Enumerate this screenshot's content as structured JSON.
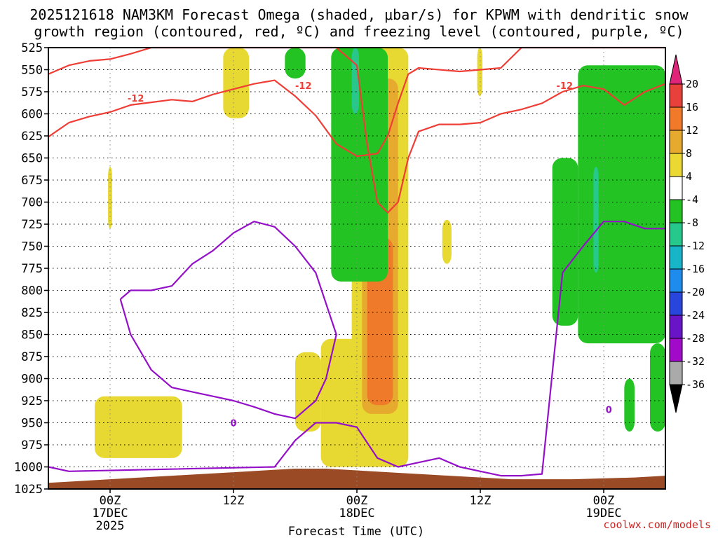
{
  "chart_data": {
    "type": "heatmap",
    "title_line1": "2025121618 NAM3KM Forecast Omega (shaded, μbar/s) for KPWM with dendritic snow",
    "title_line2": "growth region (contoured, red, ºC) and freezing level (contoured, purple, ºC)",
    "xlabel": "Forecast Time (UTC)",
    "y_ticks": [
      "525",
      "550",
      "575",
      "600",
      "625",
      "650",
      "675",
      "700",
      "725",
      "750",
      "775",
      "800",
      "825",
      "850",
      "875",
      "900",
      "925",
      "950",
      "975",
      "1000",
      "1025"
    ],
    "x_ticks": [
      {
        "hour": 6,
        "label": "00Z",
        "sub1": "17DEC",
        "sub2": "2025"
      },
      {
        "hour": 18,
        "label": "12Z",
        "sub1": "",
        "sub2": ""
      },
      {
        "hour": 30,
        "label": "00Z",
        "sub1": "18DEC",
        "sub2": ""
      },
      {
        "hour": 42,
        "label": "12Z",
        "sub1": "",
        "sub2": ""
      },
      {
        "hour": 54,
        "label": "00Z",
        "sub1": "19DEC",
        "sub2": ""
      }
    ],
    "x_range_hours": [
      0,
      60
    ],
    "y_range_hpa": [
      525,
      1025
    ],
    "colorbar": {
      "labels": [
        "20",
        "16",
        "12",
        "8",
        "4",
        "-4",
        "-8",
        "-12",
        "-16",
        "-20",
        "-24",
        "-28",
        "-32",
        "-36"
      ],
      "colors": [
        "#e0247a",
        "#e8413c",
        "#f07a2a",
        "#e6aa2e",
        "#ecd832",
        "#ffffff",
        "#22c322",
        "#27c88c",
        "#18b4c8",
        "#1e8cec",
        "#2846dc",
        "#6a14c8",
        "#a00ac8",
        "#aaaaaa",
        "#000000"
      ]
    },
    "contour_labels": {
      "red": "-12",
      "purple": "0"
    },
    "shaded_omega": [
      {
        "level": 4,
        "hours": [
          17.0,
          19.5
        ],
        "hpa": [
          525,
          605
        ]
      },
      {
        "level": 4,
        "hours": [
          4.5,
          13.0
        ],
        "hpa": [
          920,
          990
        ]
      },
      {
        "level": 4,
        "hours": [
          5.8,
          6.2
        ],
        "hpa": [
          660,
          730
        ]
      },
      {
        "level": 4,
        "hours": [
          24.0,
          26.5
        ],
        "hpa": [
          870,
          960
        ]
      },
      {
        "level": 4,
        "hours": [
          26.5,
          33.0
        ],
        "hpa": [
          855,
          1000
        ]
      },
      {
        "level": 4,
        "hours": [
          29.5,
          35.0
        ],
        "hpa": [
          525,
          1000
        ]
      },
      {
        "level": 8,
        "hours": [
          30.5,
          34.0
        ],
        "hpa": [
          560,
          940
        ]
      },
      {
        "level": 12,
        "hours": [
          31.0,
          33.5
        ],
        "hpa": [
          740,
          930
        ]
      },
      {
        "level": 4,
        "hours": [
          38.3,
          39.2
        ],
        "hpa": [
          720,
          770
        ]
      },
      {
        "level": 4,
        "hours": [
          41.7,
          42.2
        ],
        "hpa": [
          525,
          580
        ]
      },
      {
        "level": -4,
        "hours": [
          27.5,
          33.0
        ],
        "hpa": [
          525,
          790
        ]
      },
      {
        "level": -4,
        "hours": [
          23.0,
          25.0
        ],
        "hpa": [
          525,
          560
        ]
      },
      {
        "level": -8,
        "hours": [
          29.5,
          30.2
        ],
        "hpa": [
          525,
          600
        ]
      },
      {
        "level": -4,
        "hours": [
          49.0,
          51.5
        ],
        "hpa": [
          650,
          840
        ]
      },
      {
        "level": -4,
        "hours": [
          51.5,
          60.0
        ],
        "hpa": [
          545,
          860
        ]
      },
      {
        "level": -8,
        "hours": [
          53.0,
          53.5
        ],
        "hpa": [
          660,
          780
        ]
      },
      {
        "level": -4,
        "hours": [
          58.5,
          60.0
        ],
        "hpa": [
          860,
          960
        ]
      },
      {
        "level": -4,
        "hours": [
          56.0,
          57.0
        ],
        "hpa": [
          900,
          960
        ]
      }
    ],
    "dendritic_minus12C_series": [
      {
        "hours": [
          0,
          2,
          4,
          6,
          8,
          10,
          12,
          14,
          16,
          18,
          20,
          22,
          24,
          26,
          28,
          30,
          32,
          33,
          34,
          35,
          36,
          40,
          44,
          46,
          48,
          50,
          52,
          54,
          56,
          58,
          60
        ],
        "hpa": [
          626,
          610,
          603,
          598,
          590,
          587,
          584,
          586,
          578,
          572,
          566,
          562,
          580,
          602,
          634,
          648,
          645,
          625,
          588,
          555,
          548,
          552,
          548,
          525,
          525,
          525,
          525,
          525,
          525,
          525,
          525
        ]
      },
      {
        "hours": [
          0,
          2,
          4,
          6,
          8,
          10,
          12,
          14,
          16,
          18,
          20,
          22,
          24,
          26,
          28,
          30,
          31,
          32,
          33,
          34,
          35,
          36,
          38,
          40,
          42,
          44,
          46,
          48,
          50,
          52,
          54,
          56,
          58,
          60
        ],
        "hpa": [
          555,
          545,
          540,
          538,
          532,
          525,
          525,
          525,
          525,
          525,
          525,
          525,
          525,
          525,
          525,
          545,
          635,
          700,
          712,
          700,
          650,
          620,
          612,
          612,
          610,
          600,
          595,
          588,
          575,
          568,
          572,
          590,
          575,
          566
        ]
      }
    ],
    "freezing_0C_series": [
      {
        "hours": [
          7,
          8,
          10,
          12,
          14,
          16,
          18,
          20,
          22,
          24,
          26,
          28,
          27,
          26,
          25,
          24,
          22,
          20,
          18,
          16,
          14,
          12,
          10,
          8,
          7
        ],
        "hpa": [
          810,
          800,
          800,
          795,
          770,
          755,
          735,
          722,
          728,
          750,
          780,
          850,
          900,
          925,
          935,
          945,
          940,
          932,
          925,
          920,
          915,
          910,
          890,
          850,
          810
        ]
      },
      {
        "hours": [
          0,
          2,
          22,
          24,
          26,
          28,
          30,
          32,
          34,
          36,
          38,
          40,
          42,
          44,
          46,
          48,
          50,
          52,
          54,
          56,
          58,
          60
        ],
        "hpa": [
          1000,
          1005,
          1000,
          970,
          950,
          950,
          955,
          990,
          1000,
          995,
          990,
          1000,
          1005,
          1010,
          1010,
          1008,
          780,
          750,
          722,
          722,
          730,
          730
        ]
      }
    ],
    "terrain_hpa": [
      1018,
      1016,
      1014,
      1012,
      1010,
      1008,
      1006,
      1004,
      1002,
      1002,
      1004,
      1006,
      1008,
      1010,
      1012,
      1014,
      1014,
      1014,
      1013,
      1012,
      1010
    ]
  },
  "credit": "coolwx.com/models"
}
